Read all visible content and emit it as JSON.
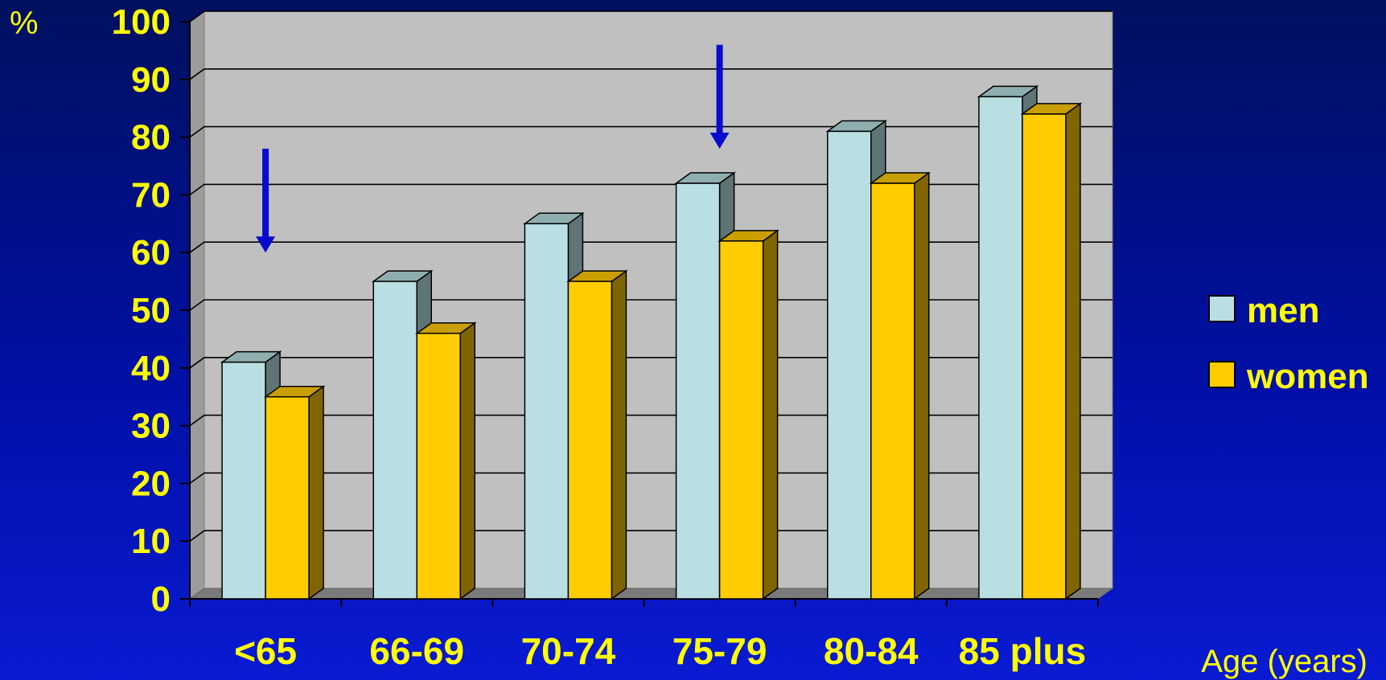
{
  "chart_data": {
    "type": "bar",
    "categories": [
      "<65",
      "66-69",
      "70-74",
      "75-79",
      "80-84",
      "85 plus"
    ],
    "series": [
      {
        "name": "men",
        "values": [
          41,
          55,
          65,
          72,
          81,
          87
        ],
        "color": "#b9dfe3"
      },
      {
        "name": "women",
        "values": [
          35,
          46,
          55,
          62,
          72,
          84
        ],
        "color": "#ffcc00"
      }
    ],
    "yticks": [
      "0",
      "10",
      "20",
      "30",
      "40",
      "50",
      "60",
      "70",
      "80",
      "90",
      "100"
    ],
    "ylim": [
      0,
      100
    ],
    "ylabel": "%",
    "xlabel": "Age (years)",
    "grid": true,
    "legend_position": "right",
    "annotations": [
      {
        "type": "arrow",
        "category": "<65",
        "from": 78,
        "to": 60,
        "color": "#0a0acf"
      },
      {
        "type": "arrow",
        "category": "75-79",
        "from": 96,
        "to": 78,
        "color": "#0a0acf"
      }
    ],
    "plot_background": "#c0c0c0"
  }
}
